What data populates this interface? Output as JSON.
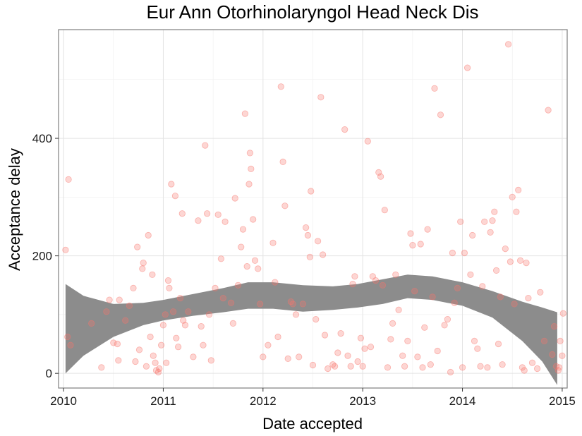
{
  "chart_data": {
    "type": "scatter",
    "title": "Eur Ann Otorhinolaryngol Head Neck Dis",
    "xlabel": "Date accepted",
    "ylabel": "Acceptance delay",
    "xlim": [
      2009.95,
      2015.05
    ],
    "ylim": [
      -25,
      585
    ],
    "x_ticks": [
      "2010",
      "2011",
      "2012",
      "2013",
      "2014",
      "2015"
    ],
    "y_ticks": [
      "0",
      "200",
      "400"
    ],
    "grid": true,
    "point_color": "#f8766d",
    "smooth_color": "#8c8c8c",
    "points": [
      [
        2010.02,
        210
      ],
      [
        2010.05,
        330
      ],
      [
        2010.04,
        62
      ],
      [
        2010.07,
        48
      ],
      [
        2010.28,
        85
      ],
      [
        2010.38,
        10
      ],
      [
        2010.43,
        105
      ],
      [
        2010.46,
        125
      ],
      [
        2010.5,
        52
      ],
      [
        2010.54,
        50
      ],
      [
        2010.55,
        22
      ],
      [
        2010.56,
        125
      ],
      [
        2010.62,
        90
      ],
      [
        2010.66,
        115
      ],
      [
        2010.7,
        145
      ],
      [
        2010.72,
        20
      ],
      [
        2010.74,
        215
      ],
      [
        2010.76,
        40
      ],
      [
        2010.79,
        178
      ],
      [
        2010.8,
        188
      ],
      [
        2010.83,
        12
      ],
      [
        2010.85,
        235
      ],
      [
        2010.87,
        62
      ],
      [
        2010.89,
        168
      ],
      [
        2010.9,
        30
      ],
      [
        2010.92,
        18
      ],
      [
        2010.93,
        5
      ],
      [
        2010.95,
        2
      ],
      [
        2010.96,
        8
      ],
      [
        2010.98,
        48
      ],
      [
        2011.0,
        82
      ],
      [
        2011.02,
        100
      ],
      [
        2011.03,
        18
      ],
      [
        2011.05,
        158
      ],
      [
        2011.06,
        145
      ],
      [
        2011.08,
        322
      ],
      [
        2011.1,
        105
      ],
      [
        2011.12,
        302
      ],
      [
        2011.13,
        60
      ],
      [
        2011.15,
        45
      ],
      [
        2011.17,
        128
      ],
      [
        2011.19,
        272
      ],
      [
        2011.2,
        90
      ],
      [
        2011.22,
        82
      ],
      [
        2011.25,
        105
      ],
      [
        2011.3,
        28
      ],
      [
        2011.35,
        260
      ],
      [
        2011.38,
        80
      ],
      [
        2011.4,
        48
      ],
      [
        2011.42,
        388
      ],
      [
        2011.44,
        272
      ],
      [
        2011.46,
        100
      ],
      [
        2011.48,
        22
      ],
      [
        2011.52,
        145
      ],
      [
        2011.55,
        270
      ],
      [
        2011.58,
        195
      ],
      [
        2011.6,
        128
      ],
      [
        2011.62,
        258
      ],
      [
        2011.68,
        120
      ],
      [
        2011.7,
        85
      ],
      [
        2011.72,
        298
      ],
      [
        2011.75,
        150
      ],
      [
        2011.78,
        215
      ],
      [
        2011.8,
        245
      ],
      [
        2011.82,
        442
      ],
      [
        2011.84,
        182
      ],
      [
        2011.86,
        322
      ],
      [
        2011.87,
        375
      ],
      [
        2011.88,
        348
      ],
      [
        2011.9,
        262
      ],
      [
        2011.92,
        192
      ],
      [
        2011.95,
        178
      ],
      [
        2011.97,
        118
      ],
      [
        2012.0,
        28
      ],
      [
        2012.05,
        48
      ],
      [
        2012.1,
        222
      ],
      [
        2012.12,
        155
      ],
      [
        2012.15,
        62
      ],
      [
        2012.18,
        488
      ],
      [
        2012.2,
        360
      ],
      [
        2012.22,
        285
      ],
      [
        2012.25,
        25
      ],
      [
        2012.28,
        122
      ],
      [
        2012.3,
        118
      ],
      [
        2012.33,
        100
      ],
      [
        2012.36,
        28
      ],
      [
        2012.4,
        118
      ],
      [
        2012.43,
        248
      ],
      [
        2012.45,
        235
      ],
      [
        2012.47,
        198
      ],
      [
        2012.48,
        310
      ],
      [
        2012.5,
        14
      ],
      [
        2012.53,
        92
      ],
      [
        2012.55,
        225
      ],
      [
        2012.58,
        470
      ],
      [
        2012.6,
        202
      ],
      [
        2012.62,
        65
      ],
      [
        2012.65,
        8
      ],
      [
        2012.7,
        15
      ],
      [
        2012.72,
        12
      ],
      [
        2012.75,
        35
      ],
      [
        2012.78,
        68
      ],
      [
        2012.82,
        415
      ],
      [
        2012.85,
        30
      ],
      [
        2012.88,
        12
      ],
      [
        2012.9,
        152
      ],
      [
        2012.92,
        165
      ],
      [
        2012.95,
        20
      ],
      [
        2012.98,
        60
      ],
      [
        2013.0,
        12
      ],
      [
        2013.02,
        42
      ],
      [
        2013.05,
        395
      ],
      [
        2013.08,
        45
      ],
      [
        2013.1,
        165
      ],
      [
        2013.13,
        158
      ],
      [
        2013.16,
        342
      ],
      [
        2013.18,
        335
      ],
      [
        2013.2,
        150
      ],
      [
        2013.22,
        278
      ],
      [
        2013.25,
        10
      ],
      [
        2013.28,
        58
      ],
      [
        2013.3,
        85
      ],
      [
        2013.33,
        168
      ],
      [
        2013.36,
        108
      ],
      [
        2013.4,
        30
      ],
      [
        2013.42,
        12
      ],
      [
        2013.45,
        55
      ],
      [
        2013.48,
        238
      ],
      [
        2013.5,
        218
      ],
      [
        2013.52,
        140
      ],
      [
        2013.55,
        28
      ],
      [
        2013.58,
        220
      ],
      [
        2013.6,
        10
      ],
      [
        2013.62,
        78
      ],
      [
        2013.65,
        245
      ],
      [
        2013.68,
        15
      ],
      [
        2013.7,
        130
      ],
      [
        2013.72,
        485
      ],
      [
        2013.75,
        38
      ],
      [
        2013.78,
        440
      ],
      [
        2013.82,
        82
      ],
      [
        2013.85,
        92
      ],
      [
        2013.88,
        2
      ],
      [
        2013.9,
        205
      ],
      [
        2013.92,
        120
      ],
      [
        2013.95,
        145
      ],
      [
        2013.98,
        258
      ],
      [
        2014.0,
        10
      ],
      [
        2014.02,
        205
      ],
      [
        2014.05,
        520
      ],
      [
        2014.08,
        168
      ],
      [
        2014.1,
        235
      ],
      [
        2014.12,
        55
      ],
      [
        2014.15,
        42
      ],
      [
        2014.18,
        12
      ],
      [
        2014.2,
        148
      ],
      [
        2014.22,
        258
      ],
      [
        2014.25,
        10
      ],
      [
        2014.28,
        240
      ],
      [
        2014.3,
        260
      ],
      [
        2014.32,
        275
      ],
      [
        2014.34,
        175
      ],
      [
        2014.36,
        50
      ],
      [
        2014.38,
        130
      ],
      [
        2014.4,
        15
      ],
      [
        2014.43,
        212
      ],
      [
        2014.46,
        560
      ],
      [
        2014.48,
        190
      ],
      [
        2014.5,
        300
      ],
      [
        2014.52,
        118
      ],
      [
        2014.54,
        275
      ],
      [
        2014.56,
        312
      ],
      [
        2014.58,
        192
      ],
      [
        2014.6,
        10
      ],
      [
        2014.62,
        5
      ],
      [
        2014.64,
        188
      ],
      [
        2014.66,
        128
      ],
      [
        2014.7,
        18
      ],
      [
        2014.75,
        8
      ],
      [
        2014.78,
        138
      ],
      [
        2014.82,
        55
      ],
      [
        2014.86,
        448
      ],
      [
        2014.9,
        32
      ],
      [
        2014.92,
        80
      ],
      [
        2014.94,
        12
      ],
      [
        2014.96,
        5
      ],
      [
        2014.97,
        10
      ],
      [
        2014.98,
        55
      ],
      [
        2015.0,
        30
      ],
      [
        2015.01,
        102
      ]
    ],
    "smooth": [
      {
        "x": 2010.02,
        "lower": 0,
        "upper": 152
      },
      {
        "x": 2010.2,
        "lower": 30,
        "upper": 132
      },
      {
        "x": 2010.5,
        "lower": 62,
        "upper": 118
      },
      {
        "x": 2010.8,
        "lower": 82,
        "upper": 120
      },
      {
        "x": 2011.0,
        "lower": 90,
        "upper": 125
      },
      {
        "x": 2011.3,
        "lower": 98,
        "upper": 135
      },
      {
        "x": 2011.6,
        "lower": 104,
        "upper": 145
      },
      {
        "x": 2011.85,
        "lower": 110,
        "upper": 155
      },
      {
        "x": 2012.1,
        "lower": 110,
        "upper": 155
      },
      {
        "x": 2012.4,
        "lower": 105,
        "upper": 150
      },
      {
        "x": 2012.7,
        "lower": 108,
        "upper": 148
      },
      {
        "x": 2012.95,
        "lower": 112,
        "upper": 152
      },
      {
        "x": 2013.2,
        "lower": 118,
        "upper": 160
      },
      {
        "x": 2013.45,
        "lower": 128,
        "upper": 168
      },
      {
        "x": 2013.7,
        "lower": 125,
        "upper": 165
      },
      {
        "x": 2014.0,
        "lower": 115,
        "upper": 155
      },
      {
        "x": 2014.3,
        "lower": 95,
        "upper": 140
      },
      {
        "x": 2014.6,
        "lower": 55,
        "upper": 122
      },
      {
        "x": 2014.8,
        "lower": 20,
        "upper": 112
      },
      {
        "x": 2014.95,
        "lower": -20,
        "upper": 104
      }
    ]
  }
}
